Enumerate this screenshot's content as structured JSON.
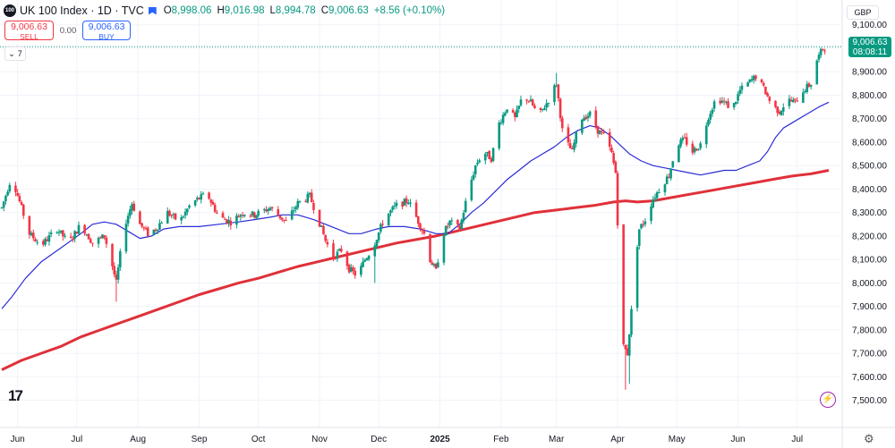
{
  "header": {
    "logo_text": "100",
    "symbol": "UK 100 Index · 1D · TVC",
    "open_key": "O",
    "open": "8,998.06",
    "high_key": "H",
    "high": "9,016.98",
    "low_key": "L",
    "low": "8,994.78",
    "close_key": "C",
    "close": "9,006.63",
    "change": "+8.56 (+0.10%)"
  },
  "trade": {
    "sell_price": "9,006.63",
    "sell_label": "SELL",
    "spread": "0.00",
    "buy_price": "9,006.63",
    "buy_label": "BUY"
  },
  "indicators_count": "7",
  "currency": "GBP",
  "price_label": {
    "price": "9,006.63",
    "countdown": "08:08:11"
  },
  "colors": {
    "up": "#089981",
    "down": "#f23645",
    "ma_fast": "#2b2bd6",
    "ma_slow": "#e03039"
  },
  "chart_data": {
    "type": "candlestick",
    "title": "",
    "y_ticks": [
      9100,
      9000,
      8900,
      8800,
      8700,
      8600,
      8500,
      8400,
      8300,
      8200,
      8100,
      8000,
      7900,
      7800,
      7700,
      7600,
      7500
    ],
    "y_tick_labels": [
      "9,100.00",
      "9,000.00",
      "8,900.00",
      "8,800.00",
      "8,700.00",
      "8,600.00",
      "8,500.00",
      "8,400.00",
      "8,300.00",
      "8,200.00",
      "8,100.00",
      "8,000.00",
      "7,900.00",
      "7,800.00",
      "7,700.00",
      "7,600.00",
      "7,500.00"
    ],
    "ylim": [
      7430,
      9160
    ],
    "x_labels": [
      "Jun",
      "Jul",
      "Aug",
      "Sep",
      "Oct",
      "Nov",
      "Dec",
      "2025",
      "Feb",
      "Mar",
      "Apr",
      "May",
      "Jun",
      "Jul"
    ],
    "x_label_days": [
      8,
      38,
      69,
      100,
      130,
      161,
      191,
      222,
      253,
      281,
      312,
      342,
      373,
      403
    ],
    "last_day": 419,
    "ohlc_key_points": [
      [
        0,
        8320
      ],
      [
        5,
        8455
      ],
      [
        14,
        8210
      ],
      [
        20,
        8160
      ],
      [
        28,
        8230
      ],
      [
        34,
        8170
      ],
      [
        40,
        8250
      ],
      [
        46,
        8170
      ],
      [
        52,
        8200
      ],
      [
        55,
        8110
      ],
      [
        58,
        8000
      ],
      [
        62,
        8240
      ],
      [
        66,
        8340
      ],
      [
        70,
        8250
      ],
      [
        74,
        8210
      ],
      [
        78,
        8230
      ],
      [
        84,
        8300
      ],
      [
        90,
        8260
      ],
      [
        96,
        8340
      ],
      [
        104,
        8380
      ],
      [
        110,
        8280
      ],
      [
        116,
        8260
      ],
      [
        122,
        8300
      ],
      [
        128,
        8290
      ],
      [
        136,
        8320
      ],
      [
        144,
        8260
      ],
      [
        150,
        8340
      ],
      [
        156,
        8370
      ],
      [
        160,
        8280
      ],
      [
        164,
        8180
      ],
      [
        168,
        8110
      ],
      [
        172,
        8140
      ],
      [
        176,
        8060
      ],
      [
        180,
        8030
      ],
      [
        184,
        8100
      ],
      [
        188,
        8150
      ],
      [
        194,
        8280
      ],
      [
        200,
        8330
      ],
      [
        206,
        8350
      ],
      [
        210,
        8280
      ],
      [
        214,
        8210
      ],
      [
        217,
        8100
      ],
      [
        220,
        8050
      ],
      [
        223,
        8200
      ],
      [
        227,
        8260
      ],
      [
        232,
        8230
      ],
      [
        236,
        8380
      ],
      [
        240,
        8500
      ],
      [
        244,
        8560
      ],
      [
        248,
        8530
      ],
      [
        252,
        8680
      ],
      [
        256,
        8750
      ],
      [
        260,
        8700
      ],
      [
        264,
        8800
      ],
      [
        268,
        8770
      ],
      [
        272,
        8710
      ],
      [
        277,
        8780
      ],
      [
        281,
        8850
      ],
      [
        284,
        8650
      ],
      [
        286,
        8600
      ],
      [
        289,
        8560
      ],
      [
        293,
        8700
      ],
      [
        298,
        8720
      ],
      [
        302,
        8650
      ],
      [
        306,
        8620
      ],
      [
        309,
        8550
      ],
      [
        311,
        8470
      ],
      [
        313,
        8050
      ],
      [
        315,
        7730
      ],
      [
        317,
        7700
      ],
      [
        319,
        7880
      ],
      [
        321,
        8100
      ],
      [
        323,
        8230
      ],
      [
        326,
        8270
      ],
      [
        330,
        8360
      ],
      [
        334,
        8410
      ],
      [
        338,
        8460
      ],
      [
        342,
        8590
      ],
      [
        346,
        8610
      ],
      [
        350,
        8560
      ],
      [
        354,
        8590
      ],
      [
        358,
        8710
      ],
      [
        362,
        8790
      ],
      [
        366,
        8770
      ],
      [
        370,
        8740
      ],
      [
        374,
        8820
      ],
      [
        378,
        8850
      ],
      [
        382,
        8880
      ],
      [
        386,
        8830
      ],
      [
        390,
        8760
      ],
      [
        394,
        8730
      ],
      [
        398,
        8780
      ],
      [
        402,
        8770
      ],
      [
        406,
        8820
      ],
      [
        410,
        8850
      ],
      [
        413,
        8950
      ],
      [
        416,
        9000
      ],
      [
        419,
        9006.63
      ]
    ],
    "spikes": [
      [
        58,
        7920
      ],
      [
        316,
        7545
      ],
      [
        318,
        7570
      ],
      [
        281,
        8895
      ],
      [
        189,
        8000
      ]
    ],
    "ma_fast_name": "",
    "ma_fast_points": [
      [
        0,
        7890
      ],
      [
        5,
        7940
      ],
      [
        12,
        8020
      ],
      [
        20,
        8090
      ],
      [
        30,
        8150
      ],
      [
        40,
        8210
      ],
      [
        46,
        8250
      ],
      [
        52,
        8260
      ],
      [
        58,
        8250
      ],
      [
        64,
        8220
      ],
      [
        70,
        8190
      ],
      [
        76,
        8200
      ],
      [
        82,
        8230
      ],
      [
        90,
        8240
      ],
      [
        100,
        8240
      ],
      [
        110,
        8250
      ],
      [
        120,
        8260
      ],
      [
        128,
        8270
      ],
      [
        136,
        8280
      ],
      [
        142,
        8290
      ],
      [
        150,
        8290
      ],
      [
        158,
        8270
      ],
      [
        164,
        8250
      ],
      [
        170,
        8230
      ],
      [
        176,
        8210
      ],
      [
        182,
        8210
      ],
      [
        190,
        8230
      ],
      [
        196,
        8240
      ],
      [
        204,
        8240
      ],
      [
        212,
        8230
      ],
      [
        220,
        8210
      ],
      [
        226,
        8210
      ],
      [
        232,
        8250
      ],
      [
        238,
        8300
      ],
      [
        244,
        8340
      ],
      [
        250,
        8390
      ],
      [
        256,
        8440
      ],
      [
        262,
        8480
      ],
      [
        268,
        8520
      ],
      [
        274,
        8550
      ],
      [
        280,
        8580
      ],
      [
        286,
        8620
      ],
      [
        292,
        8650
      ],
      [
        298,
        8670
      ],
      [
        303,
        8660
      ],
      [
        308,
        8630
      ],
      [
        313,
        8590
      ],
      [
        318,
        8550
      ],
      [
        324,
        8520
      ],
      [
        330,
        8500
      ],
      [
        336,
        8490
      ],
      [
        342,
        8480
      ],
      [
        348,
        8470
      ],
      [
        354,
        8460
      ],
      [
        360,
        8470
      ],
      [
        366,
        8480
      ],
      [
        372,
        8480
      ],
      [
        378,
        8500
      ],
      [
        384,
        8520
      ],
      [
        388,
        8560
      ],
      [
        392,
        8620
      ],
      [
        396,
        8660
      ],
      [
        402,
        8690
      ],
      [
        408,
        8720
      ],
      [
        414,
        8750
      ],
      [
        419,
        8770
      ]
    ],
    "ma_slow_name": "",
    "ma_slow_points": [
      [
        0,
        7630
      ],
      [
        10,
        7670
      ],
      [
        20,
        7700
      ],
      [
        30,
        7730
      ],
      [
        40,
        7770
      ],
      [
        50,
        7800
      ],
      [
        60,
        7830
      ],
      [
        70,
        7860
      ],
      [
        80,
        7890
      ],
      [
        90,
        7920
      ],
      [
        100,
        7950
      ],
      [
        110,
        7975
      ],
      [
        120,
        8000
      ],
      [
        130,
        8020
      ],
      [
        140,
        8045
      ],
      [
        150,
        8070
      ],
      [
        160,
        8090
      ],
      [
        170,
        8110
      ],
      [
        180,
        8130
      ],
      [
        190,
        8150
      ],
      [
        200,
        8170
      ],
      [
        210,
        8185
      ],
      [
        220,
        8200
      ],
      [
        230,
        8220
      ],
      [
        240,
        8240
      ],
      [
        250,
        8260
      ],
      [
        260,
        8280
      ],
      [
        270,
        8300
      ],
      [
        280,
        8310
      ],
      [
        290,
        8320
      ],
      [
        300,
        8330
      ],
      [
        310,
        8345
      ],
      [
        316,
        8350
      ],
      [
        322,
        8345
      ],
      [
        330,
        8350
      ],
      [
        340,
        8365
      ],
      [
        350,
        8380
      ],
      [
        360,
        8395
      ],
      [
        370,
        8410
      ],
      [
        380,
        8425
      ],
      [
        390,
        8440
      ],
      [
        400,
        8455
      ],
      [
        410,
        8465
      ],
      [
        419,
        8480
      ]
    ]
  }
}
